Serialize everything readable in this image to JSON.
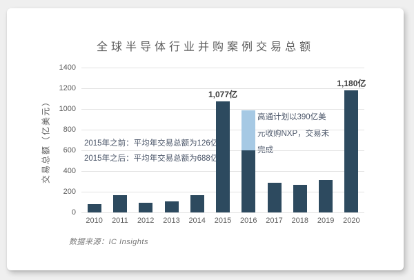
{
  "page": {
    "background_color": "#efefef",
    "card_color": "#ffffff"
  },
  "chart_data": {
    "type": "bar",
    "title": "全球半导体行业并购案例交易总额",
    "ylabel": "交易总额（亿美元）",
    "xlabel": "",
    "source": "数据来源：IC Insights",
    "categories": [
      "2010",
      "2011",
      "2012",
      "2013",
      "2014",
      "2015",
      "2016",
      "2017",
      "2018",
      "2019",
      "2020"
    ],
    "series": [
      {
        "name": "base-deals",
        "color": "#2d4a5f",
        "values": [
          80,
          170,
          95,
          110,
          170,
          1077,
          600,
          290,
          270,
          315,
          1180
        ]
      },
      {
        "name": "qualcomm-nxp-pending",
        "color": "#a6c9e4",
        "values": [
          0,
          0,
          0,
          0,
          0,
          0,
          390,
          0,
          0,
          0,
          0
        ]
      }
    ],
    "ylim": [
      0,
      1400
    ],
    "yticks": [
      0,
      200,
      400,
      600,
      800,
      1000,
      1200,
      1400
    ],
    "bar_value_labels": [
      "",
      "",
      "",
      "",
      "",
      "1,077亿",
      "",
      "",
      "",
      "",
      "1,180亿"
    ],
    "grid": "horizontal",
    "legend_position": "none",
    "annotations": {
      "pre2015": "2015年之前：平均年交易总额为126亿",
      "post2015": "2015年之后：平均年交易总额为688亿",
      "nxp_lines": [
        "高通计划以390亿美",
        "元收购NXP，交易未",
        "完成"
      ]
    },
    "colors": {
      "bar_dark": "#2d4a5f",
      "bar_light": "#a6c9e4",
      "grid_line": "#e2e2e2",
      "axis_text": "#595959",
      "annotation_text": "#4a5568",
      "value_label_text": "#3d3d3d",
      "title_text": "#5c5c5c"
    }
  }
}
